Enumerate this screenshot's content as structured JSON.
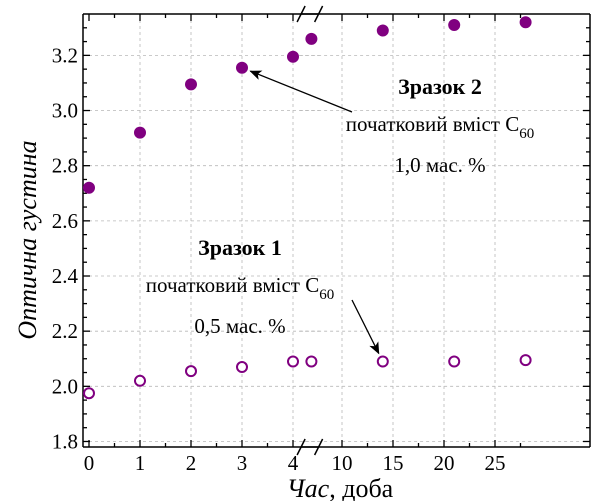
{
  "chart_data": {
    "type": "scatter",
    "title": "",
    "xlabel_italic": "Час",
    "xlabel_rest": ", доба",
    "ylabel": "Оптична густина",
    "ylim": [
      1.78,
      3.35
    ],
    "y_ticks": [
      "1.8",
      "2.0",
      "2.2",
      "2.4",
      "2.6",
      "2.8",
      "3.0",
      "3.2"
    ],
    "x_ticks_left": [
      "0",
      "1",
      "2",
      "3",
      "4"
    ],
    "x_ticks_right": [
      "10",
      "15",
      "20",
      "25"
    ],
    "x_axis_break_left": 4.6,
    "x_axis_break_right": 5.5,
    "grid": true,
    "series": [
      {
        "name": "Зразок 2",
        "marker": "filled-circle",
        "color": "#800080",
        "points": [
          {
            "x": 0,
            "y": 2.72
          },
          {
            "x": 1,
            "y": 2.92
          },
          {
            "x": 2,
            "y": 3.095
          },
          {
            "x": 3,
            "y": 3.155
          },
          {
            "x": 4,
            "y": 3.195
          },
          {
            "x": 7,
            "y": 3.26
          },
          {
            "x": 14,
            "y": 3.29
          },
          {
            "x": 21,
            "y": 3.31
          },
          {
            "x": 28,
            "y": 3.32
          }
        ]
      },
      {
        "name": "Зразок 1",
        "marker": "open-circle",
        "color": "#800080",
        "points": [
          {
            "x": 0,
            "y": 1.975
          },
          {
            "x": 1,
            "y": 2.02
          },
          {
            "x": 2,
            "y": 2.055
          },
          {
            "x": 3,
            "y": 2.07
          },
          {
            "x": 4,
            "y": 2.09
          },
          {
            "x": 7,
            "y": 2.09
          },
          {
            "x": 14,
            "y": 2.09
          },
          {
            "x": 21,
            "y": 2.09
          },
          {
            "x": 28,
            "y": 2.095
          }
        ]
      }
    ],
    "annotations": [
      {
        "id": "sample2",
        "title": "Зразок 2",
        "line1": "початковий вміст C",
        "sub": "60",
        "line2": "1,0 мас. %",
        "arrow_to": {
          "x": 3,
          "y": 3.155
        }
      },
      {
        "id": "sample1",
        "title": "Зразок 1",
        "line1": "початковий вміст C",
        "sub": "60",
        "line2": "0,5 мас. %",
        "arrow_to": {
          "x": 14,
          "y": 2.09
        }
      }
    ]
  }
}
